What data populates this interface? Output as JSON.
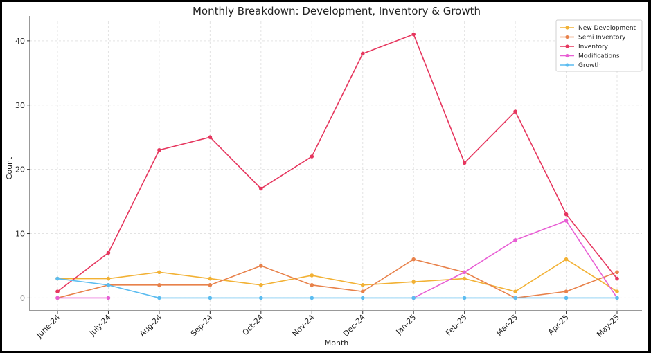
{
  "chart_data": {
    "type": "line",
    "title": "Monthly Breakdown: Development, Inventory & Growth",
    "xlabel": "Month",
    "ylabel": "Count",
    "categories": [
      "June-24",
      "July-24",
      "Aug-24",
      "Sep-24",
      "Oct-24",
      "Nov-24",
      "Dec-24",
      "Jan-25",
      "Feb-25",
      "Mar-25",
      "Apr-25",
      "May-25"
    ],
    "ylim": [
      -2,
      43
    ],
    "yticks": [
      0,
      10,
      20,
      30,
      40
    ],
    "grid": true,
    "legend_position": "top-right",
    "series": [
      {
        "name": "New Development",
        "color": "#f2b134",
        "values": [
          3,
          3,
          4,
          3,
          2,
          3.5,
          2,
          2.5,
          3,
          1,
          6,
          1
        ]
      },
      {
        "name": "Semi Inventory",
        "color": "#e8814a",
        "values": [
          0,
          2,
          2,
          2,
          5,
          2,
          1,
          6,
          4,
          0,
          1,
          4
        ]
      },
      {
        "name": "Inventory",
        "color": "#e6365e",
        "values": [
          1,
          7,
          23,
          25,
          17,
          22,
          38,
          41,
          21,
          29,
          13,
          3
        ]
      },
      {
        "name": "Modifications",
        "color": "#e85ed4",
        "values": [
          0,
          0,
          null,
          null,
          null,
          null,
          null,
          0,
          4,
          9,
          12,
          0
        ]
      },
      {
        "name": "Growth",
        "color": "#5bbcf0",
        "values": [
          3,
          2,
          0,
          0,
          0,
          0,
          0,
          0,
          0,
          0,
          0,
          0
        ]
      }
    ]
  }
}
